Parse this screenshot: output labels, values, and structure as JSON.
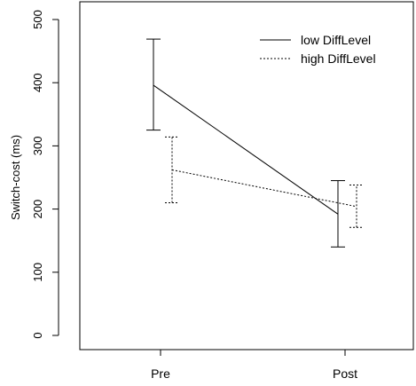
{
  "chart_data": {
    "type": "line",
    "title": "",
    "xlabel": "",
    "ylabel": "Switch-cost (ms)",
    "categories": [
      "Pre",
      "Post"
    ],
    "ylim": [
      0,
      500
    ],
    "yticks": [
      0,
      100,
      200,
      300,
      400,
      500
    ],
    "grid": false,
    "legend_position": "top-right",
    "series": [
      {
        "name": "low DiffLevel",
        "line_style": "solid",
        "values": [
          396,
          192
        ],
        "error_lower": [
          325,
          140
        ],
        "error_upper": [
          469,
          245
        ]
      },
      {
        "name": "high DiffLevel",
        "line_style": "dotted",
        "values": [
          262,
          204
        ],
        "error_lower": [
          210,
          171
        ],
        "error_upper": [
          314,
          238
        ]
      }
    ]
  }
}
